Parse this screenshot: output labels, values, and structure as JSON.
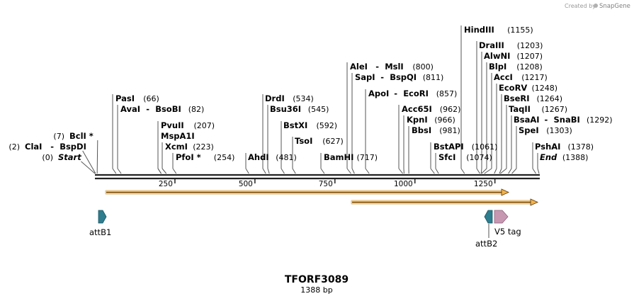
{
  "credit": {
    "text": "Created by",
    "brand": "SnapGene"
  },
  "sequence": {
    "name": "TFORF3089",
    "length_label": "1388 bp",
    "length": 1388
  },
  "ruler": {
    "ticks": [
      "250",
      "500",
      "750",
      "1000",
      "1250"
    ]
  },
  "sites": [
    {
      "names": [
        "HindIII"
      ],
      "pos": "(1155)",
      "bp": 1155
    },
    {
      "names": [
        "DraIII"
      ],
      "pos": "(1203)",
      "bp": 1203
    },
    {
      "names": [
        "AlwNI"
      ],
      "pos": "(1207)",
      "bp": 1207
    },
    {
      "names": [
        "AleI",
        "MslI"
      ],
      "pos": "(800)",
      "bp": 800
    },
    {
      "names": [
        "BlpI"
      ],
      "pos": "(1208)",
      "bp": 1208
    },
    {
      "names": [
        "SapI",
        "BspQI"
      ],
      "pos": "(811)",
      "bp": 811
    },
    {
      "names": [
        "AccI"
      ],
      "pos": "(1217)",
      "bp": 1217
    },
    {
      "names": [
        "ApoI",
        "EcoRI"
      ],
      "pos": "(857)",
      "bp": 857
    },
    {
      "names": [
        "EcoRV"
      ],
      "pos": "(1248)",
      "bp": 1248
    },
    {
      "names": [
        "PasI"
      ],
      "pos": "(66)",
      "bp": 66
    },
    {
      "names": [
        "DrdI"
      ],
      "pos": "(534)",
      "bp": 534
    },
    {
      "names": [
        "BseRI"
      ],
      "pos": "(1264)",
      "bp": 1264
    },
    {
      "names": [
        "AvaI",
        "BsoBI"
      ],
      "pos": "(82)",
      "bp": 82
    },
    {
      "names": [
        "Bsu36I"
      ],
      "pos": "(545)",
      "bp": 545
    },
    {
      "names": [
        "Acc65I"
      ],
      "pos": "(962)",
      "bp": 962
    },
    {
      "names": [
        "TaqII"
      ],
      "pos": "(1267)",
      "bp": 1267
    },
    {
      "names": [
        "KpnI"
      ],
      "pos": "(966)",
      "bp": 966
    },
    {
      "names": [
        "BsaAI",
        "SnaBI"
      ],
      "pos": "(1292)",
      "bp": 1292
    },
    {
      "names": [
        "PvuII"
      ],
      "pos": "(207)",
      "bp": 207
    },
    {
      "names": [
        "BstXI"
      ],
      "pos": "(592)",
      "bp": 592
    },
    {
      "names": [
        "BbsI"
      ],
      "pos": "(981)",
      "bp": 981
    },
    {
      "names": [
        "SpeI"
      ],
      "pos": "(1303)",
      "bp": 1303
    },
    {
      "names": [
        "BclI *"
      ],
      "pos": "(7)",
      "bp": 7
    },
    {
      "names": [
        "MspA1I"
      ],
      "pos": "",
      "bp": 207
    },
    {
      "names": [
        "TsoI"
      ],
      "pos": "(627)",
      "bp": 627
    },
    {
      "names": [
        "ClaI",
        "BspDI"
      ],
      "pos": "(2)",
      "bp": 2
    },
    {
      "names": [
        "XcmI"
      ],
      "pos": "(223)",
      "bp": 223
    },
    {
      "names": [
        "BstAPI"
      ],
      "pos": "(1061)",
      "bp": 1061
    },
    {
      "names": [
        "PshAI"
      ],
      "pos": "(1378)",
      "bp": 1378
    },
    {
      "names": [
        "Start"
      ],
      "pos": "(0)",
      "bp": 0,
      "italic": true
    },
    {
      "names": [
        "PfoI *"
      ],
      "pos": "(254)",
      "bp": 254
    },
    {
      "names": [
        "AhdI"
      ],
      "pos": "(481)",
      "bp": 481
    },
    {
      "names": [
        "BamHI"
      ],
      "pos": "(717)",
      "bp": 717
    },
    {
      "names": [
        "SfcI"
      ],
      "pos": "(1074)",
      "bp": 1074
    },
    {
      "names": [
        "End"
      ],
      "pos": "(1388)",
      "bp": 1388,
      "italic": true
    }
  ],
  "features": [
    {
      "label": "attB1",
      "type": "attB-site",
      "color": "#2d7d8e"
    },
    {
      "label": "attB2",
      "type": "attB-site",
      "color": "#2d7d8e"
    },
    {
      "label": "V5 tag",
      "type": "tag",
      "color": "#c797b2"
    }
  ],
  "orfs": [
    {
      "type": "open-reading-frame",
      "color": "#f3b34a"
    },
    {
      "type": "open-reading-frame",
      "color": "#f3b34a"
    }
  ]
}
